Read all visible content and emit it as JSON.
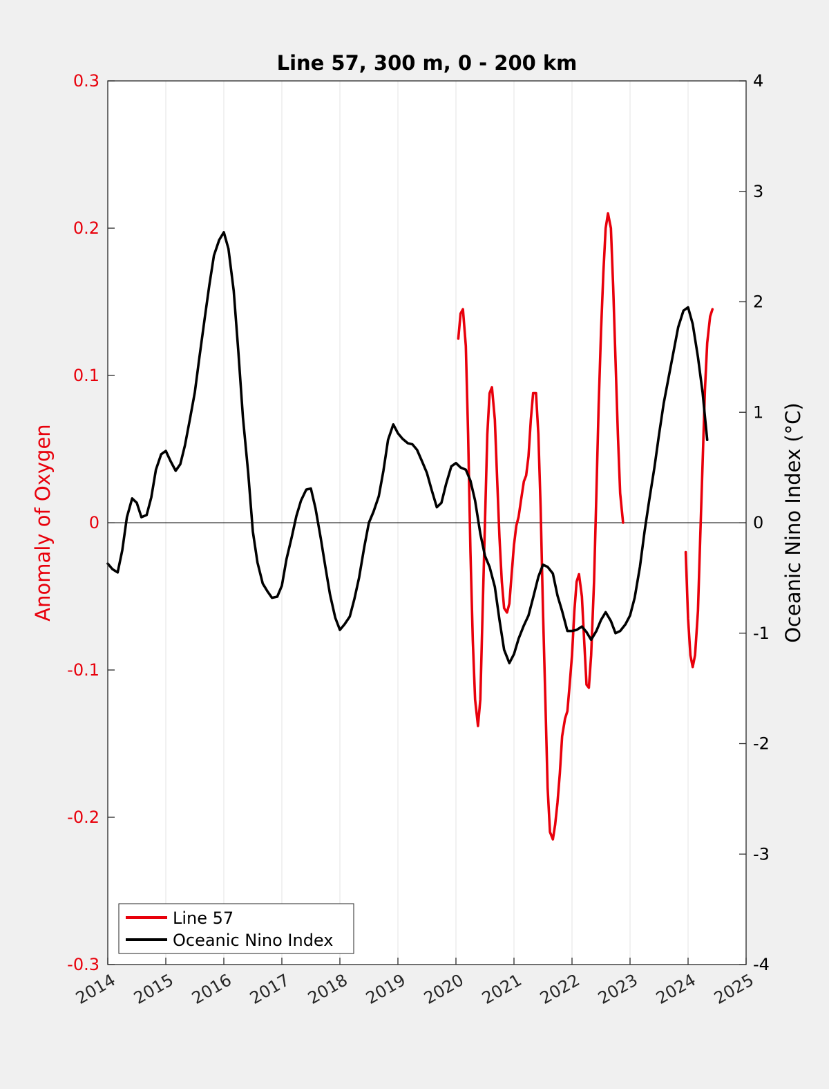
{
  "chart_data": {
    "type": "line",
    "title": "Line 57, 300 m, 0 - 200 km",
    "xlabel": "",
    "ylabel_left": "Anomaly of Oxygen",
    "ylabel_right": "Oceanic Nino Index (°C)",
    "xlim": [
      2014,
      2025
    ],
    "ylim_left": [
      -0.3,
      0.3
    ],
    "ylim_right": [
      -4,
      4
    ],
    "x_ticks": [
      2014,
      2015,
      2016,
      2017,
      2018,
      2019,
      2020,
      2021,
      2022,
      2023,
      2024,
      2025
    ],
    "x_tick_labels": [
      "2014",
      "2015",
      "2016",
      "2017",
      "2018",
      "2019",
      "2020",
      "2021",
      "2022",
      "2023",
      "2024",
      "2025"
    ],
    "y_left_ticks": [
      -0.3,
      -0.2,
      -0.1,
      0,
      0.1,
      0.2,
      0.3
    ],
    "y_left_tick_labels": [
      "-0.3",
      "-0.2",
      "-0.1",
      "0",
      "0.1",
      "0.2",
      "0.3"
    ],
    "y_right_ticks": [
      -4,
      -3,
      -2,
      -1,
      0,
      1,
      2,
      3,
      4
    ],
    "y_right_tick_labels": [
      "-4",
      "-3",
      "-2",
      "-1",
      "0",
      "1",
      "2",
      "3",
      "4"
    ],
    "grid": "vertical",
    "legend_position": "bottom-left",
    "colors": {
      "line57": "#e8000b",
      "oni": "#000000",
      "left_axis": "#e8000b",
      "right_axis": "#000000"
    },
    "series": [
      {
        "name": "Line 57",
        "axis": "left",
        "segments": [
          [
            [
              2020.04,
              0.125
            ],
            [
              2020.08,
              0.142
            ],
            [
              2020.12,
              0.145
            ],
            [
              2020.17,
              0.12
            ],
            [
              2020.21,
              0.06
            ],
            [
              2020.25,
              -0.02
            ],
            [
              2020.29,
              -0.08
            ],
            [
              2020.33,
              -0.12
            ],
            [
              2020.38,
              -0.138
            ],
            [
              2020.42,
              -0.12
            ],
            [
              2020.46,
              -0.06
            ],
            [
              2020.5,
              0.0
            ],
            [
              2020.54,
              0.06
            ],
            [
              2020.58,
              0.088
            ],
            [
              2020.62,
              0.092
            ],
            [
              2020.67,
              0.07
            ],
            [
              2020.71,
              0.03
            ],
            [
              2020.75,
              -0.01
            ],
            [
              2020.79,
              -0.04
            ],
            [
              2020.83,
              -0.058
            ],
            [
              2020.88,
              -0.061
            ],
            [
              2020.92,
              -0.055
            ],
            [
              2020.96,
              -0.035
            ],
            [
              2021.0,
              -0.015
            ],
            [
              2021.04,
              -0.002
            ],
            [
              2021.08,
              0.004
            ],
            [
              2021.12,
              0.015
            ],
            [
              2021.17,
              0.028
            ],
            [
              2021.21,
              0.032
            ],
            [
              2021.25,
              0.045
            ],
            [
              2021.29,
              0.07
            ],
            [
              2021.33,
              0.088
            ],
            [
              2021.38,
              0.088
            ],
            [
              2021.42,
              0.06
            ],
            [
              2021.46,
              0.01
            ],
            [
              2021.5,
              -0.06
            ],
            [
              2021.54,
              -0.12
            ],
            [
              2021.58,
              -0.18
            ],
            [
              2021.62,
              -0.21
            ],
            [
              2021.67,
              -0.215
            ],
            [
              2021.71,
              -0.205
            ],
            [
              2021.75,
              -0.19
            ],
            [
              2021.79,
              -0.17
            ],
            [
              2021.83,
              -0.145
            ],
            [
              2021.88,
              -0.133
            ],
            [
              2021.92,
              -0.128
            ],
            [
              2021.96,
              -0.11
            ],
            [
              2022.0,
              -0.09
            ],
            [
              2022.04,
              -0.06
            ],
            [
              2022.08,
              -0.04
            ],
            [
              2022.12,
              -0.035
            ],
            [
              2022.17,
              -0.05
            ],
            [
              2022.21,
              -0.08
            ],
            [
              2022.25,
              -0.11
            ],
            [
              2022.29,
              -0.112
            ],
            [
              2022.33,
              -0.09
            ],
            [
              2022.38,
              -0.04
            ],
            [
              2022.42,
              0.02
            ],
            [
              2022.46,
              0.08
            ],
            [
              2022.5,
              0.13
            ],
            [
              2022.54,
              0.17
            ],
            [
              2022.58,
              0.2
            ],
            [
              2022.62,
              0.21
            ],
            [
              2022.67,
              0.2
            ],
            [
              2022.71,
              0.16
            ],
            [
              2022.75,
              0.11
            ],
            [
              2022.79,
              0.06
            ],
            [
              2022.83,
              0.02
            ],
            [
              2022.88,
              0.0
            ]
          ],
          [
            [
              2023.96,
              -0.02
            ],
            [
              2024.0,
              -0.065
            ],
            [
              2024.04,
              -0.09
            ],
            [
              2024.08,
              -0.098
            ],
            [
              2024.12,
              -0.09
            ],
            [
              2024.17,
              -0.06
            ],
            [
              2024.21,
              -0.01
            ],
            [
              2024.25,
              0.04
            ],
            [
              2024.29,
              0.09
            ],
            [
              2024.33,
              0.122
            ],
            [
              2024.38,
              0.14
            ],
            [
              2024.42,
              0.145
            ]
          ]
        ]
      },
      {
        "name": "Oceanic Nino Index",
        "axis": "right",
        "segments": [
          [
            [
              2014.0,
              -0.37
            ],
            [
              2014.08,
              -0.42
            ],
            [
              2014.17,
              -0.45
            ],
            [
              2014.25,
              -0.25
            ],
            [
              2014.33,
              0.05
            ],
            [
              2014.42,
              0.22
            ],
            [
              2014.5,
              0.18
            ],
            [
              2014.58,
              0.05
            ],
            [
              2014.67,
              0.07
            ],
            [
              2014.75,
              0.23
            ],
            [
              2014.83,
              0.48
            ],
            [
              2014.92,
              0.62
            ],
            [
              2015.0,
              0.65
            ],
            [
              2015.08,
              0.56
            ],
            [
              2015.17,
              0.47
            ],
            [
              2015.25,
              0.53
            ],
            [
              2015.33,
              0.7
            ],
            [
              2015.42,
              0.95
            ],
            [
              2015.5,
              1.18
            ],
            [
              2015.58,
              1.5
            ],
            [
              2015.67,
              1.85
            ],
            [
              2015.75,
              2.15
            ],
            [
              2015.83,
              2.42
            ],
            [
              2015.92,
              2.56
            ],
            [
              2016.0,
              2.63
            ],
            [
              2016.08,
              2.48
            ],
            [
              2016.17,
              2.1
            ],
            [
              2016.25,
              1.55
            ],
            [
              2016.33,
              0.95
            ],
            [
              2016.42,
              0.45
            ],
            [
              2016.5,
              -0.08
            ],
            [
              2016.58,
              -0.36
            ],
            [
              2016.67,
              -0.55
            ],
            [
              2016.75,
              -0.62
            ],
            [
              2016.83,
              -0.68
            ],
            [
              2016.92,
              -0.67
            ],
            [
              2017.0,
              -0.57
            ],
            [
              2017.08,
              -0.33
            ],
            [
              2017.17,
              -0.13
            ],
            [
              2017.25,
              0.06
            ],
            [
              2017.33,
              0.2
            ],
            [
              2017.42,
              0.3
            ],
            [
              2017.5,
              0.31
            ],
            [
              2017.58,
              0.13
            ],
            [
              2017.67,
              -0.14
            ],
            [
              2017.75,
              -0.4
            ],
            [
              2017.83,
              -0.65
            ],
            [
              2017.92,
              -0.86
            ],
            [
              2018.0,
              -0.97
            ],
            [
              2018.08,
              -0.92
            ],
            [
              2018.17,
              -0.85
            ],
            [
              2018.25,
              -0.69
            ],
            [
              2018.33,
              -0.5
            ],
            [
              2018.42,
              -0.22
            ],
            [
              2018.5,
              0.0
            ],
            [
              2018.58,
              0.1
            ],
            [
              2018.67,
              0.24
            ],
            [
              2018.75,
              0.47
            ],
            [
              2018.83,
              0.75
            ],
            [
              2018.92,
              0.89
            ],
            [
              2019.0,
              0.81
            ],
            [
              2019.08,
              0.76
            ],
            [
              2019.17,
              0.72
            ],
            [
              2019.25,
              0.71
            ],
            [
              2019.33,
              0.66
            ],
            [
              2019.42,
              0.55
            ],
            [
              2019.5,
              0.45
            ],
            [
              2019.58,
              0.3
            ],
            [
              2019.67,
              0.14
            ],
            [
              2019.75,
              0.18
            ],
            [
              2019.83,
              0.35
            ],
            [
              2019.92,
              0.51
            ],
            [
              2020.0,
              0.54
            ],
            [
              2020.08,
              0.5
            ],
            [
              2020.17,
              0.48
            ],
            [
              2020.25,
              0.38
            ],
            [
              2020.33,
              0.2
            ],
            [
              2020.42,
              -0.1
            ],
            [
              2020.5,
              -0.3
            ],
            [
              2020.58,
              -0.4
            ],
            [
              2020.67,
              -0.58
            ],
            [
              2020.75,
              -0.88
            ],
            [
              2020.83,
              -1.15
            ],
            [
              2020.92,
              -1.27
            ],
            [
              2021.0,
              -1.19
            ],
            [
              2021.08,
              -1.05
            ],
            [
              2021.17,
              -0.93
            ],
            [
              2021.25,
              -0.84
            ],
            [
              2021.33,
              -0.68
            ],
            [
              2021.42,
              -0.49
            ],
            [
              2021.5,
              -0.38
            ],
            [
              2021.58,
              -0.4
            ],
            [
              2021.67,
              -0.46
            ],
            [
              2021.75,
              -0.66
            ],
            [
              2021.83,
              -0.8
            ],
            [
              2021.92,
              -0.98
            ],
            [
              2022.0,
              -0.98
            ],
            [
              2022.08,
              -0.97
            ],
            [
              2022.17,
              -0.94
            ],
            [
              2022.25,
              -0.99
            ],
            [
              2022.33,
              -1.06
            ],
            [
              2022.42,
              -0.98
            ],
            [
              2022.5,
              -0.88
            ],
            [
              2022.58,
              -0.81
            ],
            [
              2022.67,
              -0.89
            ],
            [
              2022.75,
              -1.0
            ],
            [
              2022.83,
              -0.98
            ],
            [
              2022.92,
              -0.92
            ],
            [
              2023.0,
              -0.84
            ],
            [
              2023.08,
              -0.68
            ],
            [
              2023.17,
              -0.4
            ],
            [
              2023.25,
              -0.08
            ],
            [
              2023.33,
              0.2
            ],
            [
              2023.42,
              0.5
            ],
            [
              2023.5,
              0.8
            ],
            [
              2023.58,
              1.08
            ],
            [
              2023.67,
              1.33
            ],
            [
              2023.75,
              1.55
            ],
            [
              2023.83,
              1.77
            ],
            [
              2023.92,
              1.92
            ],
            [
              2024.0,
              1.95
            ],
            [
              2024.08,
              1.8
            ],
            [
              2024.17,
              1.5
            ],
            [
              2024.25,
              1.18
            ],
            [
              2024.33,
              0.75
            ]
          ]
        ]
      }
    ]
  }
}
